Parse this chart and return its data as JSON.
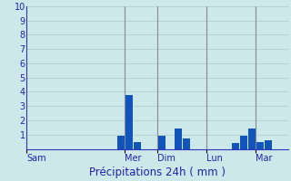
{
  "title": "Précipitations 24h ( mm )",
  "background_color": "#cce8e8",
  "bar_color": "#1155bb",
  "ylim": [
    0,
    10
  ],
  "yticks": [
    0,
    1,
    2,
    3,
    4,
    5,
    6,
    7,
    8,
    9,
    10
  ],
  "day_labels": [
    "Sam",
    "Mer",
    "Dim",
    "Lun",
    "Mar"
  ],
  "num_bars": 32,
  "bar_values": [
    0,
    0,
    0,
    0,
    0,
    0,
    0,
    0,
    0,
    0,
    0,
    0.9,
    3.8,
    0.5,
    0,
    0,
    0.9,
    0,
    1.4,
    0.7,
    0,
    0,
    0,
    0,
    0,
    0.4,
    0.9,
    1.4,
    0.5,
    0.6,
    0,
    0
  ],
  "grid_color": "#aacccc",
  "axis_color": "#3333bb",
  "tick_label_color": "#2222aa",
  "xlabel_color": "#2222aa",
  "vline_positions": [
    11.5,
    15.5,
    21.5,
    27.5
  ],
  "vline_color": "#888899",
  "day_tick_positions": [
    -0.5,
    11.5,
    15.5,
    21.5,
    27.5
  ],
  "xlabel_fontsize": 8.5,
  "ytick_fontsize": 7,
  "xtick_fontsize": 7
}
